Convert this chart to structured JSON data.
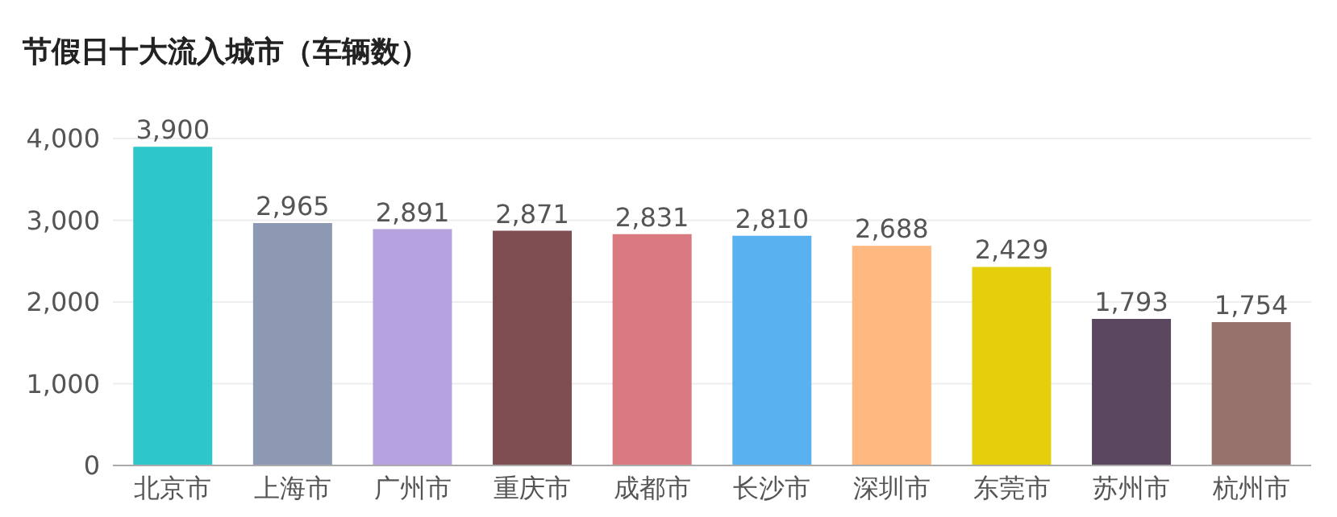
{
  "chart_data": {
    "type": "bar",
    "title": "节假日十大流入城市（车辆数）",
    "categories": [
      "北京市",
      "上海市",
      "广州市",
      "重庆市",
      "成都市",
      "长沙市",
      "深圳市",
      "东莞市",
      "苏州市",
      "杭州市"
    ],
    "values": [
      3900,
      2965,
      2891,
      2871,
      2831,
      2810,
      2688,
      2429,
      1793,
      1754
    ],
    "colors": [
      "#2ec7c9",
      "#8d98b3",
      "#b6a2de",
      "#7f4e52",
      "#d87a80",
      "#5ab1ef",
      "#ffb980",
      "#e5cf0d",
      "#5c4761",
      "#97716b"
    ],
    "ylim": [
      0,
      4000
    ],
    "yticks": [
      {
        "value": 0,
        "label": "0"
      },
      {
        "value": 1000,
        "label": "1,000"
      },
      {
        "value": 2000,
        "label": "2,000"
      },
      {
        "value": 3000,
        "label": "3,000"
      },
      {
        "value": 4000,
        "label": "4,000"
      }
    ],
    "value_labels": [
      "3,900",
      "2,965",
      "2,891",
      "2,871",
      "2,831",
      "2,810",
      "2,688",
      "2,429",
      "1,793",
      "1,754"
    ],
    "grid": "y"
  }
}
